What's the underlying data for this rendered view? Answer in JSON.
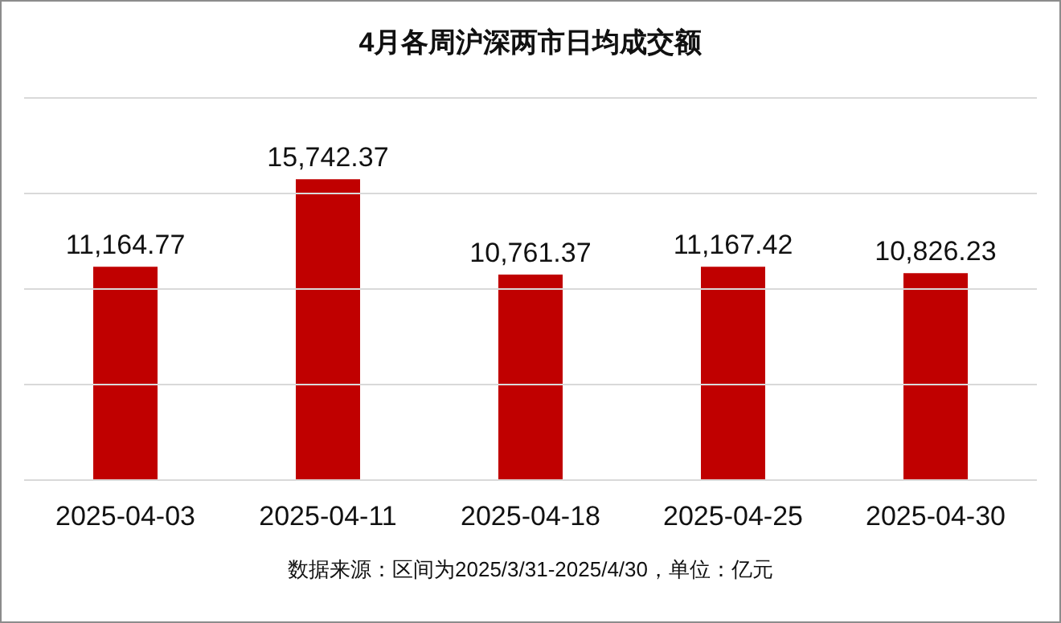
{
  "chart_data": {
    "type": "bar",
    "title": "4月各周沪深两市日均成交额",
    "categories": [
      "2025-04-03",
      "2025-04-11",
      "2025-04-18",
      "2025-04-25",
      "2025-04-30"
    ],
    "values": [
      11164.77,
      15742.37,
      10761.37,
      11167.42,
      10826.23
    ],
    "value_labels": [
      "11,164.77",
      "15,742.37",
      "10,761.37",
      "11,167.42",
      "10,826.23"
    ],
    "color": "#c00000",
    "ylim": [
      0,
      20000
    ],
    "yticks": [
      {
        "value": 0,
        "label": null
      },
      {
        "value": 5000,
        "label": null
      },
      {
        "value": 10000,
        "label": null
      },
      {
        "value": 15000,
        "label": null
      },
      {
        "value": 20000,
        "label": null
      }
    ],
    "grid": "y",
    "tick_labels": "x",
    "annotations": [
      "数据来源：区间为2025/3/31-2025/4/30，单位：亿元"
    ]
  }
}
